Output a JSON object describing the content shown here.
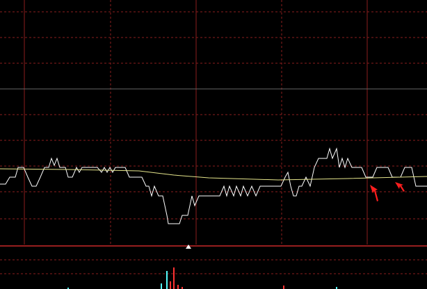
{
  "chart_data": [
    {
      "type": "line",
      "xlim": [
        0,
        614
      ],
      "ylim": [
        0,
        352
      ],
      "series": [
        {
          "color": "#ffffff",
          "x": [
            0,
            8,
            14,
            22,
            26,
            34,
            40,
            46,
            52,
            58,
            64,
            70,
            74,
            78,
            82,
            86,
            94,
            98,
            104,
            110,
            114,
            118,
            140,
            146,
            150,
            154,
            158,
            162,
            166,
            180,
            186,
            204,
            210,
            214,
            218,
            222,
            228,
            234,
            240,
            242,
            258,
            262,
            270,
            276,
            280,
            286,
            316,
            322,
            326,
            330,
            336,
            340,
            346,
            350,
            356,
            362,
            368,
            374,
            404,
            410,
            414,
            418,
            422,
            426,
            430,
            434,
            440,
            446,
            452,
            458,
            470,
            474,
            478,
            484,
            488,
            492,
            496,
            500,
            506,
            520,
            526,
            536,
            542,
            558,
            564,
            576,
            582,
            592,
            598,
            614
          ],
          "values": [
            87,
            87,
            97,
            97,
            111,
            111,
            97,
            84,
            84,
            97,
            111,
            111,
            124,
            114,
            124,
            111,
            111,
            97,
            97,
            111,
            104,
            111,
            111,
            104,
            111,
            104,
            111,
            104,
            111,
            111,
            97,
            97,
            84,
            84,
            70,
            84,
            70,
            70,
            42,
            30,
            30,
            42,
            42,
            70,
            56,
            70,
            70,
            84,
            70,
            84,
            70,
            84,
            70,
            84,
            70,
            84,
            70,
            84,
            84,
            97,
            104,
            84,
            70,
            70,
            84,
            84,
            97,
            84,
            111,
            124,
            124,
            138,
            124,
            138,
            111,
            124,
            111,
            124,
            111,
            111,
            97,
            97,
            111,
            111,
            97,
            97,
            111,
            111,
            84,
            84
          ]
        },
        {
          "color": "#e6e68c",
          "x": [
            0,
            100,
            200,
            250,
            300,
            400,
            500,
            614
          ],
          "values": [
            109,
            108,
            106,
            100,
            96,
            93,
            95,
            98
          ]
        }
      ]
    },
    {
      "type": "bar",
      "xlim": [
        0,
        614
      ],
      "ylim": [
        0,
        61
      ],
      "series": [
        {
          "color": "#ff3232",
          "x": [
            245,
            250,
            256,
            262,
            408
          ],
          "values": [
            11,
            31,
            6,
            3,
            5
          ]
        },
        {
          "color": "#54fcfc",
          "x": [
            98,
            232,
            240,
            484
          ],
          "values": [
            2,
            8,
            26,
            3
          ]
        }
      ]
    }
  ]
}
